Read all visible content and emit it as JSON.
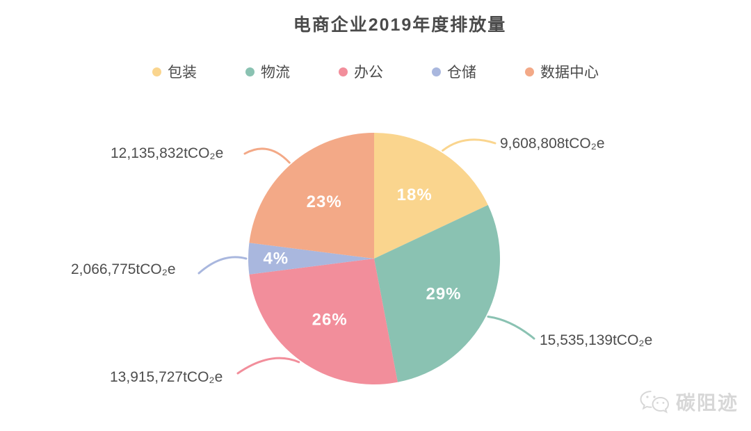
{
  "chart_data": {
    "type": "pie",
    "title": "电商企业2019年度排放量",
    "unit": "tCO₂e",
    "legend_position": "top",
    "start_angle": "top",
    "direction": "clockwise",
    "percent_text_color": "#ffffff",
    "label_text_color": "#4d4d4d",
    "slices": [
      {
        "name": "包装",
        "value": 9608808,
        "value_label": "9,608,808tCO₂e",
        "percent": 18,
        "percent_label": "18%",
        "color": "#FAD58E"
      },
      {
        "name": "物流",
        "value": 15535139,
        "value_label": "15,535,139tCO₂e",
        "percent": 29,
        "percent_label": "29%",
        "color": "#8AC2B2"
      },
      {
        "name": "办公",
        "value": 13915727,
        "value_label": "13,915,727tCO₂e",
        "percent": 26,
        "percent_label": "26%",
        "color": "#F28E9B"
      },
      {
        "name": "仓储",
        "value": 2066775,
        "value_label": "2,066,775tCO₂e",
        "percent": 4,
        "percent_label": "4%",
        "color": "#A9B7DE"
      },
      {
        "name": "数据中心",
        "value": 12135832,
        "value_label": "12,135,832tCO₂e",
        "percent": 23,
        "percent_label": "23%",
        "color": "#F3A987"
      }
    ]
  },
  "watermark": {
    "text": "碳阻迹",
    "icon": "wechat-icon"
  }
}
